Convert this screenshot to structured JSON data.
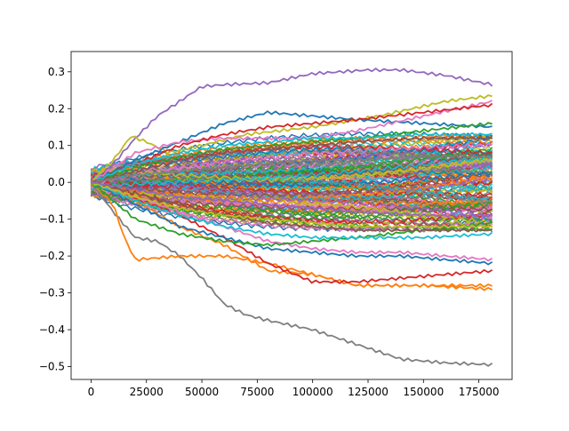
{
  "chart_data": {
    "type": "line",
    "title": "",
    "xlabel": "",
    "ylabel": "",
    "xlim": [
      -9000,
      190000
    ],
    "ylim": [
      -0.535,
      0.355
    ],
    "x_max": 181000,
    "xticks": [
      0,
      25000,
      50000,
      75000,
      100000,
      125000,
      150000,
      175000
    ],
    "xtick_labels": [
      "0",
      "25000",
      "50000",
      "75000",
      "100000",
      "125000",
      "150000",
      "175000"
    ],
    "yticks": [
      0.3,
      0.2,
      0.1,
      0.0,
      -0.1,
      -0.2,
      -0.3,
      -0.4,
      -0.5
    ],
    "ytick_labels": [
      "0.3",
      "0.2",
      "0.1",
      "0.0",
      "−0.1",
      "−0.2",
      "−0.3",
      "−0.4",
      "−0.5"
    ],
    "grid": false,
    "legend": "none",
    "palette": [
      "#1f77b4",
      "#ff7f0e",
      "#2ca02c",
      "#d62728",
      "#9467bd",
      "#8c564b",
      "#e377c2",
      "#7f7f7f",
      "#bcbd22",
      "#17becf"
    ],
    "series": [
      {
        "name": "gray-low",
        "color": "#7f7f7f",
        "x": [
          0,
          10000,
          20000,
          30000,
          40000,
          50000,
          60000,
          70000,
          80000,
          100000,
          120000,
          140000,
          160000,
          181000
        ],
        "values": [
          0.0,
          -0.08,
          -0.15,
          -0.16,
          -0.2,
          -0.26,
          -0.33,
          -0.36,
          -0.375,
          -0.4,
          -0.44,
          -0.48,
          -0.49,
          -0.495
        ]
      },
      {
        "name": "purple-high",
        "color": "#9467bd",
        "x": [
          0,
          10000,
          20000,
          30000,
          40000,
          50000,
          60000,
          80000,
          100000,
          125000,
          140000,
          160000,
          181000
        ],
        "values": [
          0.0,
          0.05,
          0.12,
          0.18,
          0.22,
          0.26,
          0.265,
          0.27,
          0.295,
          0.305,
          0.305,
          0.29,
          0.265
        ]
      },
      {
        "name": "orange-low",
        "color": "#ff7f0e",
        "x": [
          0,
          10000,
          15000,
          20000,
          40000,
          60000,
          80000,
          100000,
          120000,
          150000,
          181000
        ],
        "values": [
          0.0,
          -0.06,
          -0.15,
          -0.21,
          -0.2,
          -0.2,
          -0.22,
          -0.25,
          -0.28,
          -0.28,
          -0.29
        ]
      },
      {
        "name": "orange-mid",
        "color": "#ff7f0e",
        "x": [
          0,
          20000,
          40000,
          60000,
          80000,
          100000,
          120000,
          140000,
          160000,
          181000
        ],
        "values": [
          0.0,
          -0.05,
          -0.12,
          -0.17,
          -0.24,
          -0.25,
          -0.28,
          -0.28,
          -0.28,
          -0.28
        ]
      },
      {
        "name": "red-low",
        "color": "#d62728",
        "x": [
          0,
          20000,
          40000,
          60000,
          80000,
          100000,
          120000,
          140000,
          160000,
          181000
        ],
        "values": [
          0.0,
          -0.04,
          -0.09,
          -0.15,
          -0.22,
          -0.27,
          -0.27,
          -0.26,
          -0.25,
          -0.24
        ]
      },
      {
        "name": "blue-low",
        "color": "#1f77b4",
        "x": [
          0,
          20000,
          40000,
          60000,
          80000,
          100000,
          120000,
          140000,
          160000,
          181000
        ],
        "values": [
          0.0,
          -0.06,
          -0.12,
          -0.15,
          -0.18,
          -0.19,
          -0.2,
          -0.2,
          -0.21,
          -0.22
        ]
      },
      {
        "name": "pink-low",
        "color": "#e377c2",
        "x": [
          0,
          20000,
          40000,
          60000,
          80000,
          100000,
          120000,
          140000,
          160000,
          181000
        ],
        "values": [
          0.0,
          -0.04,
          -0.08,
          -0.12,
          -0.16,
          -0.18,
          -0.19,
          -0.19,
          -0.2,
          -0.21
        ]
      },
      {
        "name": "olive-high",
        "color": "#bcbd22",
        "x": [
          0,
          10000,
          18000,
          25000,
          35000,
          50000,
          70000,
          100000,
          130000,
          160000,
          181000
        ],
        "values": [
          0.0,
          0.06,
          0.125,
          0.11,
          0.08,
          0.1,
          0.13,
          0.15,
          0.18,
          0.22,
          0.235
        ]
      },
      {
        "name": "blue-high",
        "color": "#1f77b4",
        "x": [
          0,
          20000,
          40000,
          60000,
          80000,
          100000,
          120000,
          150000,
          181000
        ],
        "values": [
          0.0,
          0.06,
          0.11,
          0.16,
          0.19,
          0.18,
          0.17,
          0.16,
          0.15
        ]
      },
      {
        "name": "pink-high",
        "color": "#e377c2",
        "x": [
          0,
          20000,
          40000,
          60000,
          80000,
          100000,
          120000,
          150000,
          181000
        ],
        "values": [
          0.0,
          0.08,
          0.11,
          0.12,
          0.12,
          0.12,
          0.14,
          0.18,
          0.22
        ]
      },
      {
        "name": "red-high",
        "color": "#d62728",
        "x": [
          0,
          20000,
          40000,
          60000,
          80000,
          100000,
          120000,
          150000,
          181000
        ],
        "values": [
          0.0,
          0.05,
          0.1,
          0.13,
          0.15,
          0.16,
          0.17,
          0.19,
          0.21
        ]
      },
      {
        "name": "green-high",
        "color": "#2ca02c",
        "x": [
          0,
          20000,
          40000,
          60000,
          80000,
          100000,
          120000,
          150000,
          181000
        ],
        "values": [
          0.0,
          0.04,
          0.07,
          0.09,
          0.1,
          0.11,
          0.12,
          0.14,
          0.16
        ]
      },
      {
        "name": "cyan-high",
        "color": "#17becf",
        "x": [
          0,
          20000,
          40000,
          60000,
          80000,
          100000,
          120000,
          150000,
          181000
        ],
        "values": [
          0.0,
          0.05,
          0.08,
          0.1,
          0.11,
          0.12,
          0.12,
          0.13,
          0.13
        ]
      },
      {
        "name": "brown-high",
        "color": "#8c564b",
        "x": [
          0,
          20000,
          40000,
          60000,
          80000,
          100000,
          120000,
          150000,
          181000
        ],
        "values": [
          0.0,
          0.03,
          0.06,
          0.08,
          0.09,
          0.1,
          0.11,
          0.12,
          0.12
        ]
      },
      {
        "name": "green-low",
        "color": "#2ca02c",
        "x": [
          0,
          20000,
          40000,
          60000,
          80000,
          100000,
          120000,
          150000,
          181000
        ],
        "values": [
          0.0,
          -0.1,
          -0.14,
          -0.16,
          -0.17,
          -0.16,
          -0.15,
          -0.13,
          -0.11
        ]
      },
      {
        "name": "cyan-low",
        "color": "#17becf",
        "x": [
          0,
          20000,
          40000,
          60000,
          80000,
          100000,
          120000,
          150000,
          181000
        ],
        "values": [
          0.0,
          -0.05,
          -0.09,
          -0.12,
          -0.14,
          -0.15,
          -0.15,
          -0.15,
          -0.14
        ]
      },
      {
        "name": "brown-low",
        "color": "#8c564b",
        "x": [
          0,
          20000,
          40000,
          60000,
          80000,
          100000,
          120000,
          150000,
          181000
        ],
        "values": [
          0.0,
          -0.03,
          -0.06,
          -0.09,
          -0.11,
          -0.12,
          -0.13,
          -0.13,
          -0.13
        ]
      },
      {
        "name": "olive-low",
        "color": "#bcbd22",
        "x": [
          0,
          20000,
          40000,
          60000,
          80000,
          100000,
          120000,
          150000,
          181000
        ],
        "values": [
          0.0,
          -0.04,
          -0.07,
          -0.09,
          -0.1,
          -0.11,
          -0.12,
          -0.12,
          -0.12
        ]
      },
      {
        "name": "gray-mid",
        "color": "#7f7f7f",
        "x": [
          0,
          20000,
          40000,
          60000,
          80000,
          100000,
          120000,
          150000,
          181000
        ],
        "values": [
          0.0,
          0.02,
          0.03,
          0.04,
          0.05,
          0.06,
          0.06,
          0.07,
          0.07
        ]
      },
      {
        "name": "purple-mid",
        "color": "#9467bd",
        "x": [
          0,
          20000,
          40000,
          60000,
          80000,
          100000,
          120000,
          150000,
          181000
        ],
        "values": [
          0.0,
          -0.02,
          -0.04,
          -0.05,
          -0.06,
          -0.07,
          -0.08,
          -0.09,
          -0.09
        ]
      }
    ]
  }
}
